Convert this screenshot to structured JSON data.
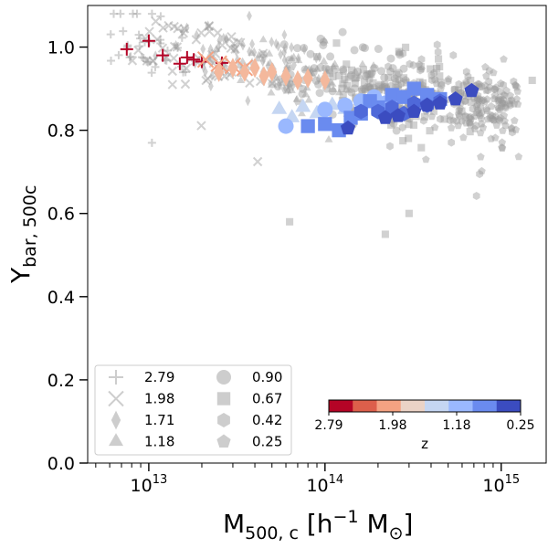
{
  "chart_data": {
    "type": "scatter",
    "title": "",
    "xlabel": {
      "main": "M",
      "sub": "500, c",
      "rest": " [h",
      "sup": "−1",
      "tail": " M",
      "sun": "⊙",
      "close": "]"
    },
    "ylabel": {
      "main": "Y",
      "sub": "bar, 500c"
    },
    "x_scale": "log",
    "xlim": [
      4500000000000.0,
      1800000000000000.0
    ],
    "ylim": [
      0.0,
      1.1
    ],
    "x_ticks": [
      {
        "value": 10000000000000.0,
        "base": "10",
        "exp": "13"
      },
      {
        "value": 100000000000000.0,
        "base": "10",
        "exp": "14"
      },
      {
        "value": 1000000000000000.0,
        "base": "10",
        "exp": "15"
      }
    ],
    "y_ticks": [
      {
        "value": 0.0,
        "label": "0.0"
      },
      {
        "value": 0.2,
        "label": "0.2"
      },
      {
        "value": 0.4,
        "label": "0.4"
      },
      {
        "value": 0.6,
        "label": "0.6"
      },
      {
        "value": 0.8,
        "label": "0.8"
      },
      {
        "value": 1.0,
        "label": "1.0"
      }
    ],
    "legend": {
      "placement": "lower-left",
      "entries": [
        {
          "marker": "plus",
          "label": "2.79"
        },
        {
          "marker": "x",
          "label": "1.98"
        },
        {
          "marker": "diamond",
          "label": "1.71"
        },
        {
          "marker": "triangle",
          "label": "1.18"
        },
        {
          "marker": "circle",
          "label": "0.90"
        },
        {
          "marker": "square",
          "label": "0.67"
        },
        {
          "marker": "hexagon",
          "label": "0.42"
        },
        {
          "marker": "pentagon",
          "label": "0.25"
        }
      ]
    },
    "colorbar": {
      "label": "z",
      "placement": "lower-right",
      "tick_labels": [
        "2.79",
        "1.98",
        "1.18",
        "0.25"
      ],
      "colors": [
        "#b40426",
        "#dd5f4b",
        "#f4a282",
        "#ebd3c6",
        "#c5d6f2",
        "#9ab8fe",
        "#6a8bef",
        "#3b4cc0"
      ]
    },
    "background_color": "#999999",
    "series": [
      {
        "name": "2.79",
        "marker": "plus",
        "color": "#b40426",
        "points": [
          [
            7500000000000.0,
            0.995
          ],
          [
            10000000000000.0,
            1.015
          ],
          [
            12000000000000.0,
            0.98
          ],
          [
            15000000000000.0,
            0.96
          ],
          [
            16500000000000.0,
            0.975
          ],
          [
            18000000000000.0,
            0.97
          ],
          [
            20000000000000.0,
            0.965
          ],
          [
            26000000000000.0,
            0.962
          ]
        ]
      },
      {
        "name": "1.98",
        "marker": "x",
        "color": "#f4a282",
        "points": [
          [
            21000000000000.0,
            0.97
          ],
          [
            25000000000000.0,
            0.96
          ],
          [
            30000000000000.0,
            0.955
          ],
          [
            35000000000000.0,
            0.95
          ]
        ]
      },
      {
        "name": "1.71",
        "marker": "diamond",
        "color": "#f4b89c",
        "points": [
          [
            25000000000000.0,
            0.94
          ],
          [
            30000000000000.0,
            0.95
          ],
          [
            35000000000000.0,
            0.94
          ],
          [
            40000000000000.0,
            0.95
          ],
          [
            45000000000000.0,
            0.93
          ],
          [
            50000000000000.0,
            0.94
          ],
          [
            60000000000000.0,
            0.93
          ],
          [
            70000000000000.0,
            0.92
          ],
          [
            80000000000000.0,
            0.925
          ],
          [
            100000000000000.0,
            0.92
          ]
        ]
      },
      {
        "name": "1.18",
        "marker": "triangle",
        "color": "#c5d6f2",
        "points": [
          [
            55000000000000.0,
            0.85
          ],
          [
            65000000000000.0,
            0.83
          ],
          [
            75000000000000.0,
            0.855
          ],
          [
            90000000000000.0,
            0.84
          ],
          [
            110000000000000.0,
            0.86
          ],
          [
            130000000000000.0,
            0.85
          ]
        ]
      },
      {
        "name": "0.90",
        "marker": "circle",
        "color": "#9ab8fe",
        "points": [
          [
            100000000000000.0,
            0.85
          ],
          [
            130000000000000.0,
            0.86
          ],
          [
            160000000000000.0,
            0.87
          ],
          [
            190000000000000.0,
            0.88
          ],
          [
            220000000000000.0,
            0.865
          ],
          [
            60000000000000.0,
            0.81
          ]
        ]
      },
      {
        "name": "0.67",
        "marker": "square",
        "color": "#6a8bef",
        "points": [
          [
            80000000000000.0,
            0.81
          ],
          [
            100000000000000.0,
            0.815
          ],
          [
            120000000000000.0,
            0.8
          ],
          [
            140000000000000.0,
            0.83
          ],
          [
            160000000000000.0,
            0.84
          ],
          [
            180000000000000.0,
            0.87
          ],
          [
            200000000000000.0,
            0.855
          ],
          [
            240000000000000.0,
            0.885
          ],
          [
            280000000000000.0,
            0.88
          ],
          [
            320000000000000.0,
            0.9
          ],
          [
            380000000000000.0,
            0.885
          ],
          [
            450000000000000.0,
            0.875
          ]
        ]
      },
      {
        "name": "0.42",
        "marker": "hexagon",
        "color": "#4f69d9",
        "points": [
          [
            160000000000000.0,
            0.845
          ],
          [
            200000000000000.0,
            0.845
          ],
          [
            240000000000000.0,
            0.855
          ],
          [
            280000000000000.0,
            0.84
          ],
          [
            320000000000000.0,
            0.865
          ],
          [
            380000000000000.0,
            0.86
          ],
          [
            450000000000000.0,
            0.87
          ]
        ]
      },
      {
        "name": "0.25",
        "marker": "pentagon",
        "color": "#3b4cc0",
        "points": [
          [
            135000000000000.0,
            0.805
          ],
          [
            220000000000000.0,
            0.83
          ],
          [
            260000000000000.0,
            0.835
          ],
          [
            320000000000000.0,
            0.845
          ],
          [
            380000000000000.0,
            0.86
          ],
          [
            450000000000000.0,
            0.865
          ],
          [
            550000000000000.0,
            0.875
          ],
          [
            680000000000000.0,
            0.895
          ]
        ]
      }
    ]
  }
}
